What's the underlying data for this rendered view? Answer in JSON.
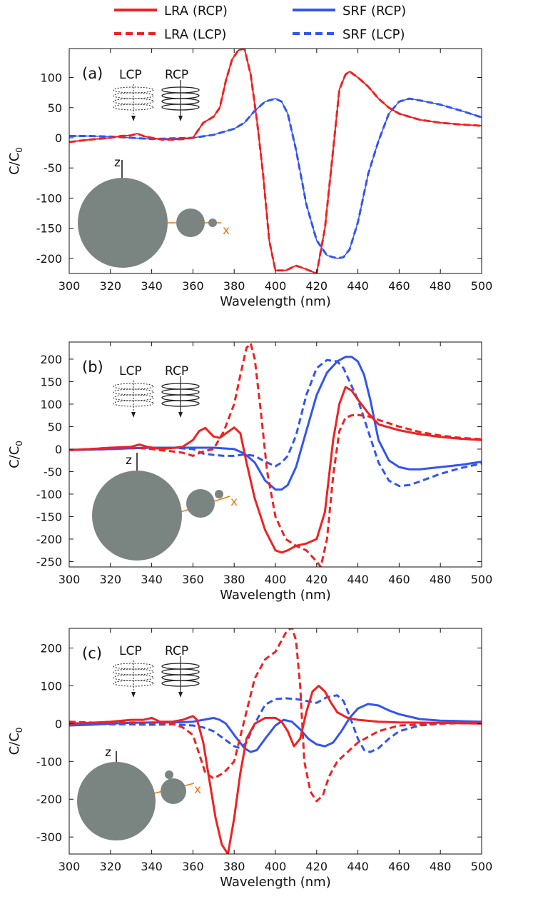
{
  "legend": {
    "position": "top",
    "items": [
      {
        "label": "LRA (RCP)",
        "color": "#ee2222",
        "style": "solid"
      },
      {
        "label": "SRF (RCP)",
        "color": "#3355ee",
        "style": "solid"
      },
      {
        "label": "LRA (LCP)",
        "color": "#ee2222",
        "style": "dashed"
      },
      {
        "label": "SRF (LCP)",
        "color": "#3355ee",
        "style": "dashed"
      }
    ]
  },
  "colors": {
    "lra": "#ee2222",
    "srf": "#3355ee",
    "sphere": "#7a8481",
    "axis_x": "#ee7711"
  },
  "inset_labels": {
    "lcp": "LCP",
    "rcp": "RCP",
    "z": "z",
    "x": "x"
  },
  "chart_data": [
    {
      "type": "line",
      "panel_label": "(a)",
      "xlabel": "Wavelength (nm)",
      "ylabel": "C/C",
      "ylabel_sub": "0",
      "xlim": [
        300,
        500
      ],
      "ylim": [
        -225,
        148
      ],
      "xticks": [
        300,
        320,
        340,
        360,
        380,
        400,
        420,
        440,
        460,
        480,
        500
      ],
      "yticks": [
        100,
        50,
        0,
        -50,
        -100,
        -150,
        -200
      ],
      "series": [
        {
          "name": "LRA (RCP)",
          "color": "#ee2222",
          "dash": false,
          "width": 2,
          "x": [
            300,
            310,
            320,
            325,
            330,
            333,
            336,
            340,
            345,
            350,
            355,
            360,
            365,
            370,
            373,
            376,
            379,
            382,
            385,
            388,
            391,
            394,
            397,
            400,
            405,
            410,
            415,
            420,
            424,
            428,
            431,
            434,
            436,
            440,
            445,
            450,
            455,
            460,
            470,
            480,
            490,
            500
          ],
          "y": [
            -7,
            -3,
            0,
            3,
            4,
            7,
            3,
            0,
            -3,
            -3,
            -2,
            0,
            25,
            35,
            50,
            95,
            130,
            145,
            148,
            105,
            30,
            -60,
            -170,
            -220,
            -220,
            -212,
            -218,
            -225,
            -150,
            -20,
            80,
            105,
            110,
            100,
            85,
            65,
            50,
            40,
            30,
            25,
            22,
            20
          ]
        },
        {
          "name": "LRA (LCP)",
          "color": "#ee2222",
          "dash": true,
          "width": 3,
          "x": [
            300,
            310,
            320,
            325,
            330,
            333,
            336,
            340,
            345,
            350,
            355,
            360,
            365,
            370,
            373,
            376,
            379,
            382,
            385,
            388,
            391,
            394,
            397,
            400,
            405,
            410,
            415,
            420,
            424,
            428,
            431,
            434,
            436,
            440,
            445,
            450,
            455,
            460,
            470,
            480,
            490,
            500
          ],
          "y": [
            -7,
            -3,
            0,
            3,
            4,
            7,
            3,
            0,
            -3,
            -3,
            -2,
            0,
            25,
            35,
            50,
            95,
            130,
            145,
            148,
            105,
            30,
            -60,
            -170,
            -220,
            -220,
            -212,
            -218,
            -225,
            -150,
            -20,
            80,
            105,
            110,
            100,
            85,
            65,
            50,
            40,
            30,
            25,
            22,
            20
          ]
        },
        {
          "name": "SRF (RCP)",
          "color": "#3355ee",
          "dash": false,
          "width": 1.5,
          "x": [
            300,
            310,
            320,
            330,
            340,
            350,
            360,
            370,
            380,
            385,
            390,
            395,
            400,
            403,
            406,
            410,
            415,
            420,
            425,
            430,
            433,
            436,
            440,
            445,
            450,
            455,
            460,
            465,
            470,
            480,
            490,
            500
          ],
          "y": [
            3,
            3,
            2,
            0,
            -2,
            -1,
            0,
            5,
            15,
            25,
            45,
            60,
            65,
            60,
            40,
            -20,
            -110,
            -170,
            -195,
            -200,
            -198,
            -185,
            -140,
            -60,
            -5,
            40,
            60,
            65,
            62,
            55,
            45,
            34
          ]
        },
        {
          "name": "SRF (LCP)",
          "color": "#3355ee",
          "dash": true,
          "width": 3,
          "x": [
            300,
            310,
            320,
            330,
            340,
            350,
            360,
            370,
            380,
            385,
            390,
            395,
            400,
            403,
            406,
            410,
            415,
            420,
            425,
            430,
            433,
            436,
            440,
            445,
            450,
            455,
            460,
            465,
            470,
            480,
            490,
            500
          ],
          "y": [
            3,
            3,
            2,
            0,
            -2,
            -1,
            0,
            5,
            15,
            25,
            45,
            60,
            65,
            60,
            40,
            -20,
            -110,
            -170,
            -195,
            -200,
            -198,
            -185,
            -140,
            -60,
            -5,
            40,
            60,
            65,
            62,
            55,
            45,
            34
          ]
        }
      ]
    },
    {
      "type": "line",
      "panel_label": "(b)",
      "xlabel": "Wavelength (nm)",
      "ylabel": "C/C",
      "ylabel_sub": "0",
      "xlim": [
        300,
        500
      ],
      "ylim": [
        -262,
        238
      ],
      "xticks": [
        300,
        320,
        340,
        360,
        380,
        400,
        420,
        440,
        460,
        480,
        500
      ],
      "yticks": [
        200,
        150,
        100,
        50,
        0,
        -50,
        -100,
        -150,
        -200,
        -250
      ],
      "series": [
        {
          "name": "LRA (RCP)",
          "color": "#ee2222",
          "dash": false,
          "width": 3,
          "x": [
            300,
            310,
            320,
            330,
            334,
            338,
            345,
            355,
            360,
            363,
            366,
            370,
            373,
            376,
            380,
            383,
            386,
            390,
            395,
            400,
            403,
            406,
            410,
            415,
            420,
            424,
            428,
            431,
            434,
            437,
            440,
            445,
            450,
            460,
            470,
            480,
            490,
            500
          ],
          "y": [
            -2,
            0,
            3,
            5,
            10,
            5,
            0,
            5,
            20,
            40,
            47,
            28,
            25,
            35,
            48,
            35,
            -30,
            -110,
            -180,
            -225,
            -230,
            -225,
            -215,
            -210,
            -200,
            -140,
            20,
            100,
            138,
            130,
            110,
            80,
            55,
            42,
            33,
            27,
            23,
            20
          ]
        },
        {
          "name": "LRA (LCP)",
          "color": "#ee2222",
          "dash": true,
          "width": 3,
          "x": [
            300,
            310,
            320,
            330,
            335,
            340,
            345,
            350,
            355,
            360,
            365,
            370,
            375,
            380,
            383,
            386,
            388,
            390,
            393,
            396,
            400,
            405,
            410,
            415,
            420,
            422,
            425,
            428,
            431,
            434,
            437,
            440,
            445,
            450,
            460,
            470,
            480,
            490,
            500
          ],
          "y": [
            -2,
            0,
            3,
            3,
            2,
            0,
            -3,
            -5,
            -8,
            -15,
            -5,
            0,
            40,
            100,
            165,
            225,
            235,
            200,
            80,
            -50,
            -150,
            -200,
            -215,
            -225,
            -250,
            -262,
            -200,
            -60,
            40,
            70,
            75,
            76,
            73,
            65,
            50,
            38,
            30,
            25,
            22
          ]
        },
        {
          "name": "SRF (RCP)",
          "color": "#3355ee",
          "dash": false,
          "width": 3,
          "x": [
            300,
            310,
            320,
            330,
            340,
            350,
            360,
            370,
            380,
            385,
            390,
            395,
            400,
            403,
            406,
            410,
            415,
            420,
            425,
            430,
            434,
            437,
            440,
            443,
            446,
            450,
            455,
            460,
            465,
            470,
            480,
            490,
            500
          ],
          "y": [
            -2,
            -1,
            0,
            2,
            3,
            3,
            3,
            3,
            0,
            -10,
            -30,
            -70,
            -90,
            -90,
            -80,
            -40,
            40,
            120,
            170,
            195,
            205,
            205,
            195,
            165,
            110,
            20,
            -25,
            -40,
            -45,
            -45,
            -40,
            -35,
            -28
          ]
        },
        {
          "name": "SRF (LCP)",
          "color": "#3355ee",
          "dash": true,
          "width": 3,
          "x": [
            300,
            310,
            320,
            330,
            340,
            350,
            360,
            365,
            370,
            375,
            380,
            385,
            390,
            395,
            400,
            403,
            406,
            410,
            415,
            420,
            425,
            430,
            433,
            436,
            440,
            445,
            450,
            455,
            460,
            465,
            470,
            480,
            490,
            500
          ],
          "y": [
            -2,
            -1,
            0,
            2,
            3,
            3,
            0,
            -10,
            -13,
            -15,
            -15,
            -12,
            -15,
            -28,
            -38,
            -30,
            -15,
            30,
            120,
            180,
            198,
            195,
            180,
            150,
            110,
            40,
            -30,
            -70,
            -82,
            -80,
            -72,
            -55,
            -42,
            -32
          ]
        }
      ]
    },
    {
      "type": "line",
      "panel_label": "(c)",
      "xlabel": "Wavelength (nm)",
      "ylabel": "C/C",
      "ylabel_sub": "0",
      "xlim": [
        300,
        500
      ],
      "ylim": [
        -345,
        252
      ],
      "xticks": [
        300,
        320,
        340,
        360,
        380,
        400,
        420,
        440,
        460,
        480,
        500
      ],
      "yticks": [
        200,
        100,
        0,
        -100,
        -200,
        -300
      ],
      "series": [
        {
          "name": "LRA (RCP)",
          "color": "#ee2222",
          "dash": false,
          "width": 3,
          "x": [
            300,
            310,
            320,
            330,
            336,
            340,
            344,
            350,
            355,
            360,
            362,
            365,
            368,
            371,
            374,
            377,
            380,
            383,
            386,
            390,
            395,
            400,
            403,
            406,
            409,
            412,
            415,
            418,
            421,
            424,
            427,
            430,
            435,
            440,
            450,
            460,
            480,
            500
          ],
          "y": [
            0,
            2,
            5,
            10,
            10,
            15,
            5,
            5,
            10,
            20,
            10,
            -50,
            -150,
            -250,
            -320,
            -345,
            -250,
            -130,
            -40,
            0,
            15,
            15,
            5,
            -20,
            -60,
            -40,
            30,
            85,
            100,
            85,
            55,
            30,
            15,
            10,
            5,
            3,
            2,
            0
          ]
        },
        {
          "name": "LRA (LCP)",
          "color": "#ee2222",
          "dash": true,
          "width": 3,
          "x": [
            300,
            310,
            320,
            330,
            340,
            350,
            355,
            360,
            363,
            366,
            370,
            375,
            380,
            385,
            390,
            395,
            400,
            405,
            408,
            410,
            412,
            414,
            417,
            420,
            423,
            426,
            430,
            435,
            440,
            450,
            460,
            480,
            500
          ],
          "y": [
            5,
            3,
            2,
            3,
            2,
            0,
            -10,
            -30,
            -80,
            -130,
            -145,
            -130,
            -100,
            10,
            120,
            170,
            190,
            240,
            255,
            220,
            100,
            -100,
            -180,
            -205,
            -190,
            -140,
            -100,
            -75,
            -50,
            -20,
            -5,
            0,
            2
          ]
        },
        {
          "name": "SRF (RCP)",
          "color": "#3355ee",
          "dash": false,
          "width": 3,
          "x": [
            300,
            310,
            320,
            330,
            340,
            350,
            360,
            365,
            370,
            373,
            376,
            380,
            385,
            388,
            391,
            395,
            400,
            404,
            408,
            412,
            416,
            420,
            424,
            428,
            432,
            436,
            440,
            445,
            450,
            455,
            460,
            470,
            480,
            500
          ],
          "y": [
            -5,
            -3,
            0,
            2,
            3,
            3,
            5,
            10,
            15,
            10,
            0,
            -30,
            -65,
            -75,
            -70,
            -40,
            -5,
            10,
            5,
            -15,
            -40,
            -55,
            -60,
            -50,
            -20,
            15,
            40,
            52,
            48,
            35,
            25,
            12,
            8,
            5
          ]
        },
        {
          "name": "SRF (LCP)",
          "color": "#3355ee",
          "dash": true,
          "width": 3,
          "x": [
            300,
            310,
            320,
            330,
            340,
            350,
            360,
            365,
            370,
            375,
            380,
            383,
            386,
            390,
            395,
            400,
            405,
            410,
            415,
            420,
            425,
            430,
            433,
            436,
            440,
            443,
            446,
            450,
            455,
            460,
            470,
            480,
            490,
            500
          ],
          "y": [
            0,
            0,
            -2,
            -2,
            -3,
            -2,
            -5,
            -10,
            -20,
            -40,
            -60,
            -65,
            -50,
            0,
            50,
            65,
            67,
            65,
            60,
            55,
            70,
            75,
            60,
            20,
            -40,
            -70,
            -75,
            -65,
            -40,
            -20,
            -5,
            0,
            3,
            5
          ]
        }
      ]
    }
  ]
}
